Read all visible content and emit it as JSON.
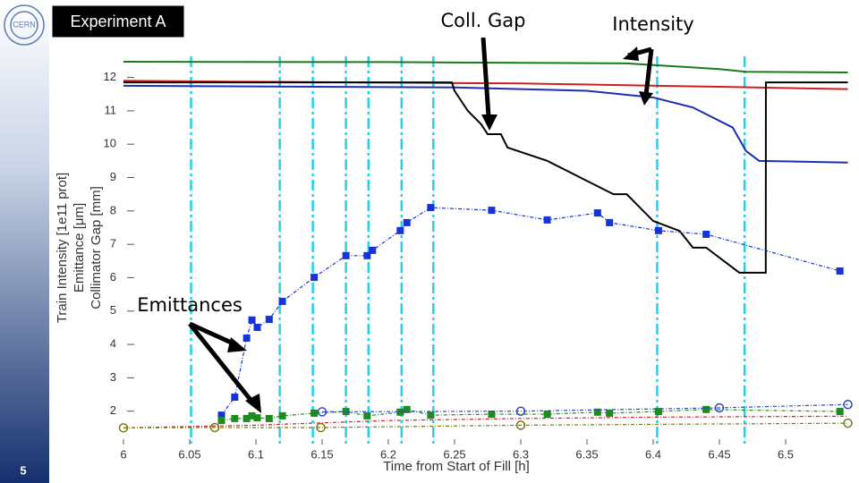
{
  "chart_data": {
    "type": "line",
    "slide_label": "Experiment A",
    "page_number": "5",
    "xlabel": "Time from Start of Fill [h]",
    "ylabel": [
      "Train Intensity [1e11 prot]",
      "Emittance [μm]",
      "Collimator Gap [mm]"
    ],
    "annotations": [
      "Coll. Gap",
      "Intensity",
      "Emittances"
    ],
    "xlim": [
      6,
      6.55
    ],
    "ylim": [
      1,
      12.9
    ],
    "xticks": [
      6,
      6.05,
      6.1,
      6.15,
      6.2,
      6.25,
      6.3,
      6.35,
      6.4,
      6.45,
      6.5
    ],
    "yticks": [
      2,
      3,
      4,
      5,
      6,
      7,
      8,
      9,
      10,
      11,
      12
    ],
    "vlines": [
      6.051,
      6.118,
      6.143,
      6.168,
      6.185,
      6.21,
      6.234,
      6.403,
      6.469
    ],
    "vline_color": "#22d3e6",
    "series": [
      {
        "color": "#1a7a1a",
        "marker": "none",
        "dash": false,
        "x": [
          6,
          6.2,
          6.38,
          6.45,
          6.47,
          6.547
        ],
        "values": [
          12.47,
          12.46,
          12.42,
          12.25,
          12.17,
          12.15
        ]
      },
      {
        "color": "#cc1f1f",
        "marker": "none",
        "dash": false,
        "x": [
          6,
          6.1,
          6.3,
          6.45,
          6.547
        ],
        "values": [
          11.9,
          11.87,
          11.82,
          11.72,
          11.65
        ]
      },
      {
        "color": "#1c2fb0",
        "marker": "none",
        "dash": false,
        "x": [
          6,
          6.25,
          6.35,
          6.4,
          6.43,
          6.46,
          6.47,
          6.48,
          6.547
        ],
        "values": [
          11.75,
          11.7,
          11.6,
          11.4,
          11.1,
          10.5,
          9.8,
          9.5,
          9.45
        ]
      },
      {
        "color": "#000000",
        "marker": "none",
        "dash": false,
        "x": [
          6,
          6.248,
          6.25,
          6.26,
          6.27,
          6.275,
          6.285,
          6.29,
          6.32,
          6.35,
          6.37,
          6.38,
          6.4,
          6.42,
          6.43,
          6.44,
          6.465,
          6.485,
          6.4851,
          6.547
        ],
        "values": [
          11.85,
          11.85,
          11.6,
          11.0,
          10.6,
          10.3,
          10.3,
          9.9,
          9.5,
          8.9,
          8.5,
          8.5,
          7.7,
          7.4,
          6.9,
          6.9,
          6.15,
          6.15,
          11.85,
          11.85
        ]
      },
      {
        "color": "#1533d6",
        "marker": "square",
        "dash": true,
        "x": [
          6.074,
          6.084,
          6.093,
          6.097,
          6.101,
          6.11,
          6.12,
          6.144,
          6.168,
          6.184,
          6.188,
          6.209,
          6.214,
          6.232,
          6.278,
          6.32,
          6.358,
          6.367,
          6.404,
          6.44,
          6.541
        ],
        "values": [
          1.88,
          2.42,
          4.19,
          4.73,
          4.51,
          4.75,
          5.29,
          6.01,
          6.66,
          6.66,
          6.82,
          7.41,
          7.65,
          8.1,
          8.02,
          7.73,
          7.94,
          7.65,
          7.41,
          7.3,
          6.2
        ]
      },
      {
        "color": "#1f8a1f",
        "marker": "square",
        "dash": true,
        "x": [
          6.074,
          6.084,
          6.093,
          6.097,
          6.101,
          6.11,
          6.12,
          6.144,
          6.168,
          6.184,
          6.209,
          6.214,
          6.232,
          6.278,
          6.32,
          6.358,
          6.367,
          6.404,
          6.44,
          6.541
        ],
        "values": [
          1.72,
          1.78,
          1.78,
          1.86,
          1.8,
          1.78,
          1.86,
          1.94,
          1.99,
          1.86,
          1.97,
          2.05,
          1.88,
          1.91,
          1.91,
          1.97,
          1.94,
          1.99,
          2.05,
          1.99
        ]
      },
      {
        "color": "#cc2222",
        "marker": "none",
        "dash": true,
        "x": [
          6,
          6.1,
          6.2,
          6.3,
          6.4,
          6.547
        ],
        "values": [
          1.5,
          1.58,
          1.72,
          1.78,
          1.82,
          1.85
        ]
      },
      {
        "color": "#7a7a10",
        "marker": "circle",
        "dash": true,
        "x": [
          6,
          6.069,
          6.149,
          6.3,
          6.547
        ],
        "values": [
          1.5,
          1.51,
          1.51,
          1.58,
          1.64
        ]
      },
      {
        "color": "#3344cc",
        "marker": "circle",
        "dash": true,
        "x": [
          6.15,
          6.3,
          6.45,
          6.547
        ],
        "values": [
          1.98,
          2.0,
          2.1,
          2.2
        ]
      }
    ]
  }
}
